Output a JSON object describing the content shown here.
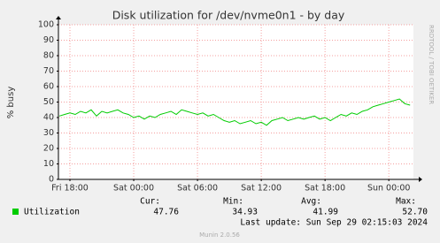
{
  "chart_data": {
    "type": "line",
    "title": "Disk utilization for /dev/nvme0n1 - by day",
    "ylabel": "% busy",
    "side_text": "RRDTOOL / TOBI OETIKER",
    "categories": [
      null,
      null,
      "Fri 18:00",
      null,
      null,
      null,
      null,
      null,
      null,
      null,
      null,
      null,
      null,
      null,
      "Sat 00:00",
      null,
      null,
      null,
      null,
      null,
      null,
      null,
      null,
      null,
      null,
      null,
      "Sat 06:00",
      null,
      null,
      null,
      null,
      null,
      null,
      null,
      null,
      null,
      null,
      null,
      "Sat 12:00",
      null,
      null,
      null,
      null,
      null,
      null,
      null,
      null,
      null,
      null,
      null,
      "Sat 18:00",
      null,
      null,
      null,
      null,
      null,
      null,
      null,
      null,
      null,
      null,
      null,
      "Sun 00:00",
      null,
      null,
      null,
      null
    ],
    "series": [
      {
        "name": "Utilization",
        "color": "#00cc00",
        "values": [
          41,
          42,
          43,
          42,
          44,
          43,
          45,
          41,
          44,
          43,
          44,
          45,
          43,
          42,
          40,
          41,
          39,
          41,
          40,
          42,
          43,
          44,
          42,
          45,
          44,
          43,
          42,
          43,
          41,
          42,
          40,
          38,
          37,
          38,
          36,
          37,
          38,
          36,
          37,
          35,
          38,
          39,
          40,
          38,
          39,
          40,
          39,
          40,
          41,
          39,
          40,
          38,
          40,
          42,
          41,
          43,
          42,
          44,
          45,
          47,
          48,
          49,
          50,
          51,
          52,
          49,
          48
        ]
      }
    ],
    "ylim": [
      0,
      100
    ],
    "yticks": [
      0,
      10,
      20,
      30,
      40,
      50,
      60,
      70,
      80,
      90,
      100
    ],
    "grid": true,
    "legend": {
      "headers": [
        "Cur:",
        "Min:",
        "Avg:",
        "Max:"
      ],
      "stats": [
        "47.76",
        "34.93",
        "41.99",
        "52.70"
      ]
    },
    "last_update": "Last update: Sun Sep 29 02:15:03 2024",
    "footer": "Munin 2.0.56"
  }
}
